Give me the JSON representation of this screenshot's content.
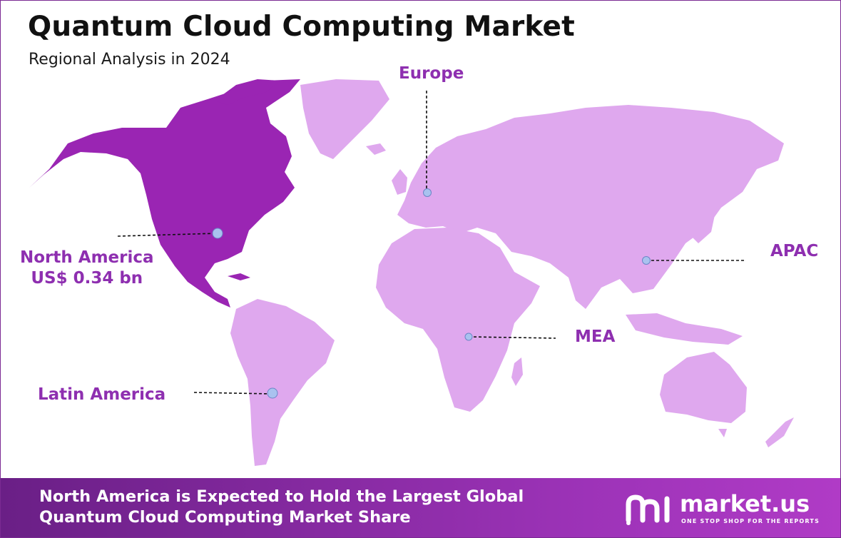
{
  "header": {
    "title": "Quantum Cloud Computing Market",
    "subtitle": "Regional Analysis in 2024"
  },
  "map": {
    "colors": {
      "highlight": "#9a25b3",
      "land": "#dfa8ee",
      "label": "#8e2fb0",
      "marker": "#a9c2ef"
    },
    "regions": {
      "north_america": {
        "name": "North America",
        "value": "US$ 0.34 bn",
        "highlighted": true
      },
      "europe": {
        "name": "Europe"
      },
      "apac": {
        "name": "APAC"
      },
      "mea": {
        "name": "MEA"
      },
      "latin_america": {
        "name": "Latin America"
      }
    }
  },
  "footer": {
    "line1": "North America is Expected to Hold the Largest Global",
    "line2": "Quantum Cloud Computing Market Share"
  },
  "brand": {
    "name": "market.us",
    "tagline": "ONE STOP SHOP FOR THE REPORTS"
  }
}
